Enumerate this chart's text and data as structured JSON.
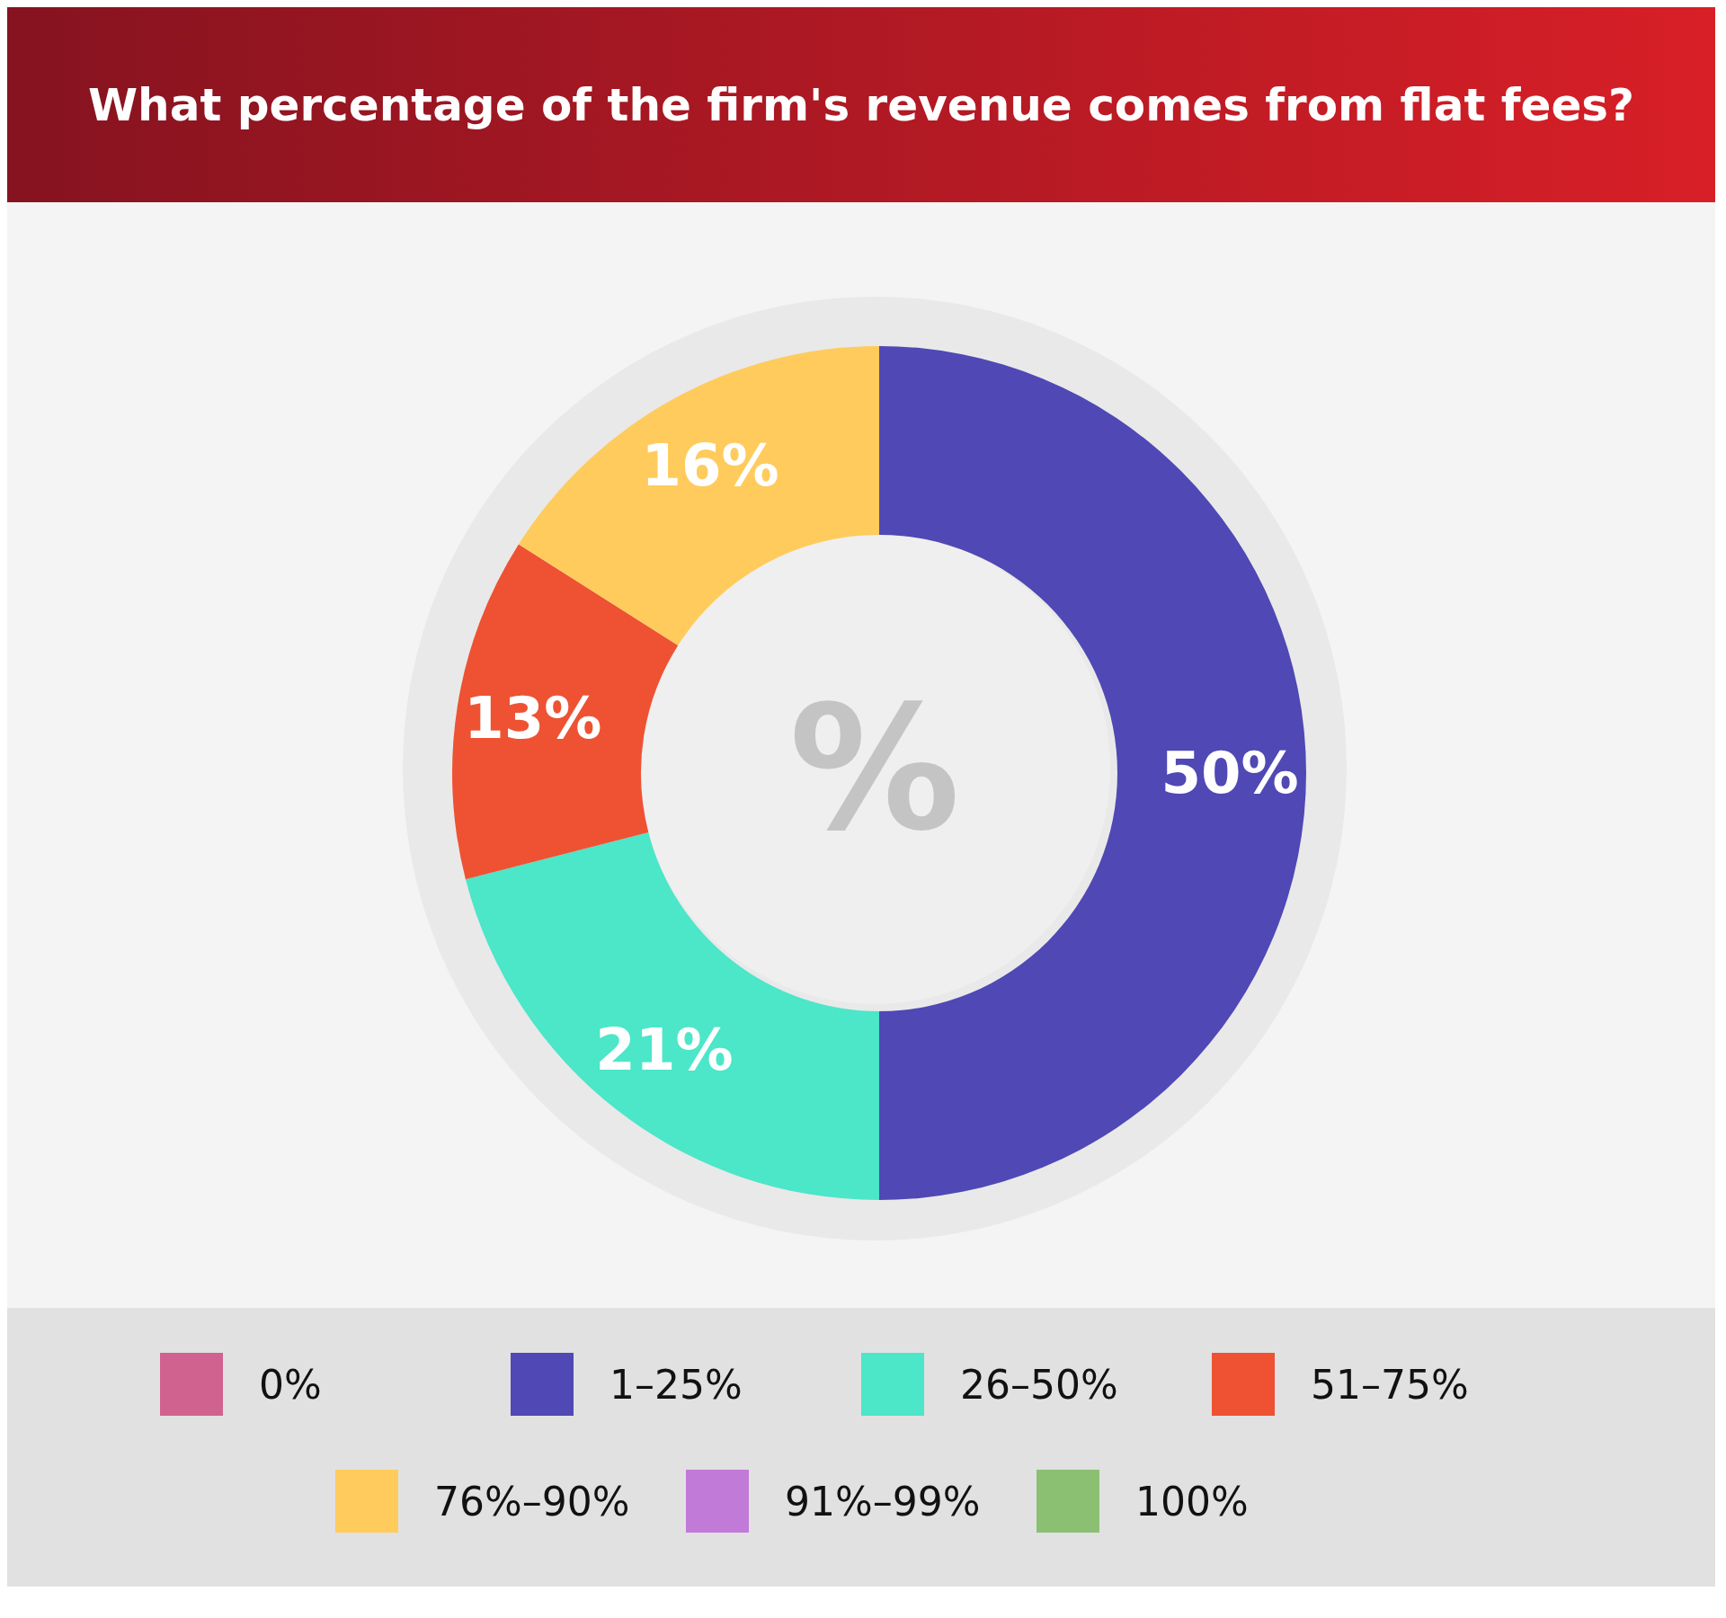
{
  "chart_data": {
    "type": "donut",
    "title": "What percentage of the firm's revenue comes from flat fees?",
    "categories": [
      "0%",
      "1–25%",
      "26–50%",
      "51–75%",
      "76%–90%",
      "91%–99%",
      "100%"
    ],
    "values": [
      0,
      50,
      21,
      13,
      16,
      0,
      0
    ],
    "colors": [
      "#d0628f",
      "#4f48b5",
      "#4ce6c8",
      "#ee5233",
      "#ffcb5c",
      "#c27ad9",
      "#8bc073"
    ],
    "value_labels": [
      null,
      "50%",
      "21%",
      "13%",
      "16%",
      null,
      null
    ],
    "annotations": [
      "%"
    ],
    "legend": "bottom"
  }
}
